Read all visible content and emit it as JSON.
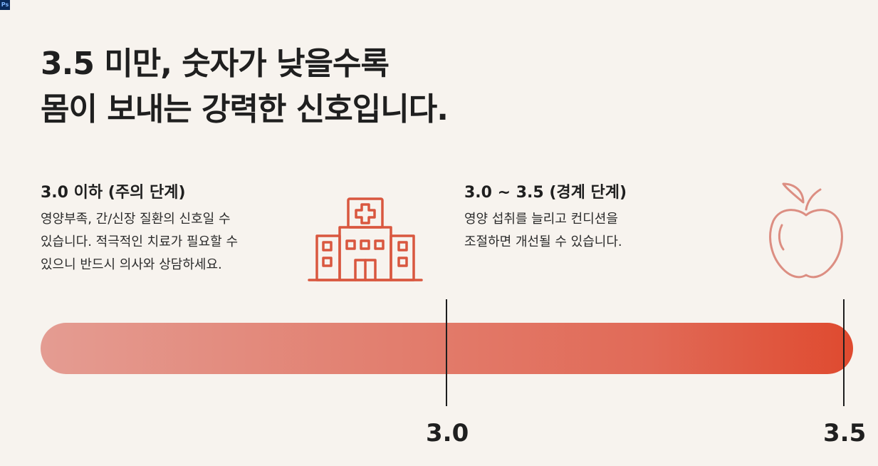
{
  "badge": "Ps",
  "headline": {
    "line1": "3.5 미만, 숫자가 낮을수록",
    "line2": "몸이 보내는 강력한 신호입니다."
  },
  "left_block": {
    "title": "3.0 이하 (주의 단계)",
    "lines": [
      "영양부족, 간/신장 질환의 신호일 수",
      "있습니다. 적극적인 치료가 필요할 수",
      "있으니 반드시 의사와 상담하세요."
    ],
    "icon": "hospital-icon"
  },
  "right_block": {
    "title": "3.0 ~ 3.5 (경계 단계)",
    "lines": [
      "영양 섭취를 늘리고 컨디션을",
      "조절하면 개선될 수 있습니다."
    ],
    "icon": "apple-icon"
  },
  "scale": {
    "markers": [
      "3.0",
      "3.5"
    ]
  },
  "colors": {
    "background": "#f7f3ee",
    "accent": "#df4a2f",
    "icon_stroke_hospital": "#d9573f",
    "icon_stroke_apple": "#dc8e82",
    "text": "#1f1f1f"
  }
}
